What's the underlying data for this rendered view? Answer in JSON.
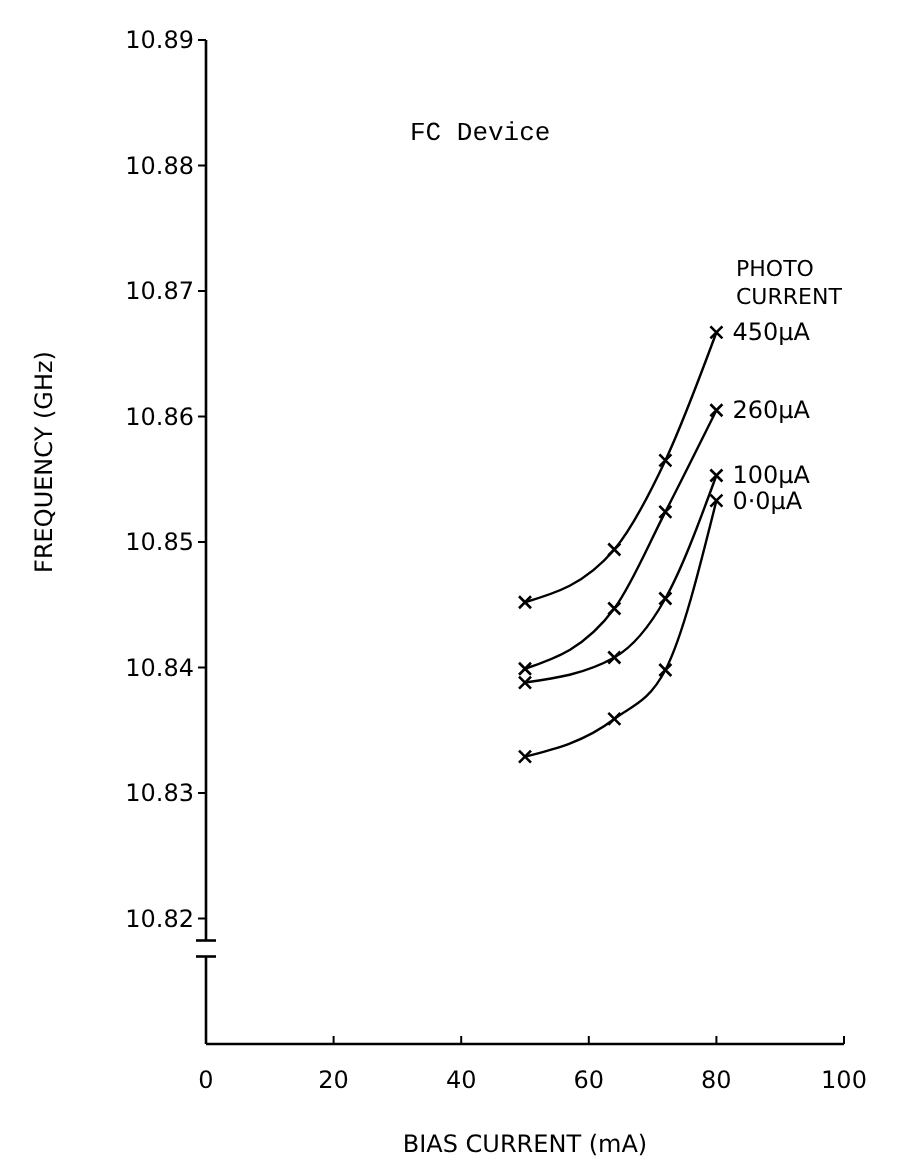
{
  "chart_data": {
    "type": "line",
    "title": "FC Device",
    "xlabel": "BIAS CURRENT (mA)",
    "ylabel": "FREQUENCY (GHz)",
    "legend_title": "PHOTO CURRENT",
    "xlim": [
      0,
      100
    ],
    "xticks": [
      0,
      20,
      40,
      60,
      80,
      100
    ],
    "ylim": [
      10.81,
      10.89
    ],
    "yticks": [
      10.82,
      10.83,
      10.84,
      10.85,
      10.86,
      10.87,
      10.88,
      10.89
    ],
    "marker": "cross",
    "line_style": "solid",
    "grid": false,
    "x": [
      50,
      64,
      72,
      80
    ],
    "series": [
      {
        "name": "450μA",
        "color": "#000000",
        "values": [
          10.8452,
          10.8494,
          10.8565,
          10.8667
        ]
      },
      {
        "name": "260μA",
        "color": "#000000",
        "values": [
          10.8399,
          10.8447,
          10.8524,
          10.8605
        ]
      },
      {
        "name": "100μA",
        "color": "#000000",
        "values": [
          10.8388,
          10.8408,
          10.8455,
          10.8553
        ]
      },
      {
        "name": "0·0μA",
        "color": "#000000",
        "values": [
          10.8329,
          10.8359,
          10.8398,
          10.8533
        ]
      }
    ]
  }
}
